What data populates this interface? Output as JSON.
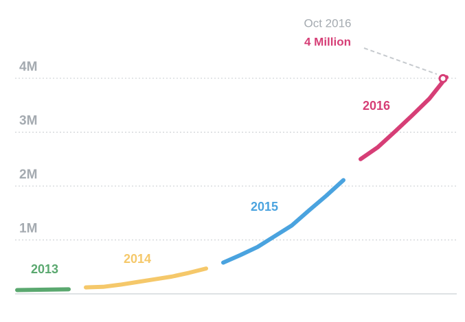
{
  "chart_data": {
    "type": "line",
    "categories": [
      null,
      null,
      null,
      null,
      null,
      null,
      null,
      null,
      null,
      null,
      null,
      null,
      null,
      null,
      null,
      null,
      null,
      null,
      null,
      null,
      null,
      null,
      null,
      null,
      null,
      null
    ],
    "series": [
      {
        "name": "2013",
        "color": "#5aa86f",
        "values": [
          70000,
          75000,
          80000,
          85000,
          null,
          null,
          null,
          null,
          null,
          null,
          null,
          null,
          null,
          null,
          null,
          null,
          null,
          null,
          null,
          null,
          null,
          null,
          null,
          null,
          null,
          null
        ]
      },
      {
        "name": "2014",
        "color": "#f5c86a",
        "values": [
          null,
          null,
          null,
          null,
          120000,
          130000,
          170000,
          220000,
          270000,
          320000,
          390000,
          470000,
          null,
          null,
          null,
          null,
          null,
          null,
          null,
          null,
          null,
          null,
          null,
          null,
          null,
          null
        ]
      },
      {
        "name": "2015",
        "color": "#4aa3df",
        "values": [
          null,
          null,
          null,
          null,
          null,
          null,
          null,
          null,
          null,
          null,
          null,
          null,
          580000,
          720000,
          870000,
          1070000,
          1270000,
          1550000,
          1820000,
          2110000,
          null,
          null,
          null,
          null,
          null,
          null
        ]
      },
      {
        "name": "2016",
        "color": "#d63e76",
        "values": [
          null,
          null,
          null,
          null,
          null,
          null,
          null,
          null,
          null,
          null,
          null,
          null,
          null,
          null,
          null,
          null,
          null,
          null,
          null,
          null,
          2500000,
          2720000,
          3010000,
          3310000,
          3620000,
          4020000
        ]
      }
    ],
    "ylim": [
      0,
      5000000
    ],
    "yticks": [
      {
        "value": 1000000,
        "label": "1M"
      },
      {
        "value": 2000000,
        "label": "2M"
      },
      {
        "value": 3000000,
        "label": "3M"
      },
      {
        "value": 4000000,
        "label": "4M"
      }
    ],
    "grid": true,
    "annotation": {
      "date": "Oct 2016",
      "label": "4 Million"
    }
  }
}
